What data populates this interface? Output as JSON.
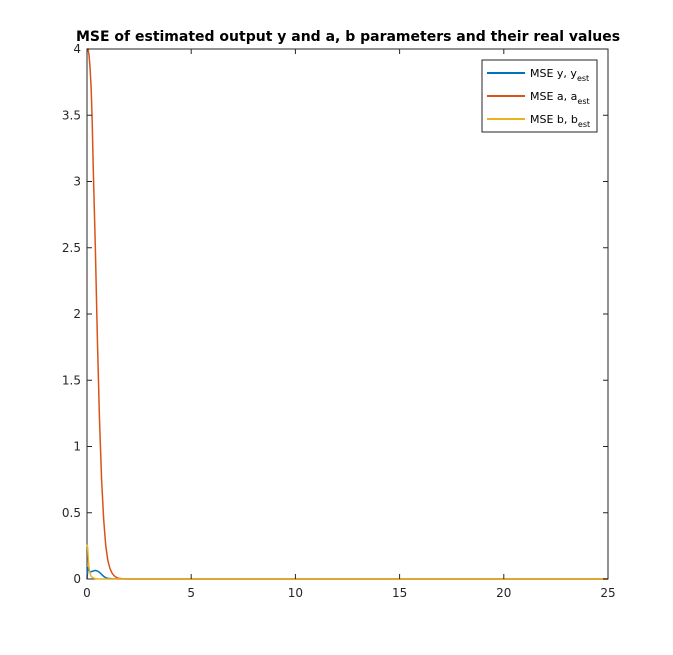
{
  "chart_data": {
    "type": "line",
    "title": "MSE of estimated output y and a, b parameters and their real values",
    "xlabel": "",
    "ylabel": "",
    "xlim": [
      0,
      25
    ],
    "ylim": [
      0,
      4
    ],
    "xticks": [
      0,
      5,
      10,
      15,
      20,
      25
    ],
    "yticks": [
      0,
      0.5,
      1,
      1.5,
      2,
      2.5,
      3,
      3.5,
      4
    ],
    "xtick_labels": [
      "0",
      "5",
      "10",
      "15",
      "20",
      "25"
    ],
    "ytick_labels": [
      "0",
      "0.5",
      "1",
      "1.5",
      "2",
      "2.5",
      "3",
      "3.5",
      "4"
    ],
    "grid": false,
    "legend_position": "top-right",
    "series": [
      {
        "name": "MSE y, y",
        "subscript": "est",
        "color": "#0072BD",
        "x": [
          0,
          0.05,
          0.1,
          0.15,
          0.2,
          0.3,
          0.4,
          0.5,
          0.6,
          0.7,
          0.8,
          0.9,
          1.0,
          1.2,
          1.5,
          2.0,
          25
        ],
        "y": [
          0,
          0.09,
          0.07,
          0.05,
          0.055,
          0.06,
          0.065,
          0.06,
          0.05,
          0.035,
          0.02,
          0.01,
          0.005,
          0.002,
          0.0005,
          0,
          0
        ]
      },
      {
        "name": "MSE a, a",
        "subscript": "est",
        "color": "#D95319",
        "x": [
          0,
          0.05,
          0.1,
          0.15,
          0.2,
          0.25,
          0.3,
          0.4,
          0.5,
          0.6,
          0.7,
          0.8,
          0.9,
          1.0,
          1.1,
          1.2,
          1.3,
          1.4,
          1.5,
          1.7,
          2.0,
          25
        ],
        "y": [
          4.0,
          4.0,
          3.95,
          3.85,
          3.7,
          3.45,
          3.1,
          2.5,
          1.8,
          1.2,
          0.75,
          0.45,
          0.25,
          0.14,
          0.08,
          0.045,
          0.025,
          0.013,
          0.006,
          0.002,
          0,
          0
        ]
      },
      {
        "name": "MSE b, b",
        "subscript": "est",
        "color": "#EDB120",
        "x": [
          0,
          0.03,
          0.06,
          0.1,
          0.15,
          0.2,
          0.3,
          0.4,
          0.5,
          0.7,
          1.0,
          25
        ],
        "y": [
          0.26,
          0.24,
          0.15,
          0.08,
          0.04,
          0.02,
          0.008,
          0.003,
          0.001,
          0,
          0,
          0
        ]
      }
    ]
  }
}
